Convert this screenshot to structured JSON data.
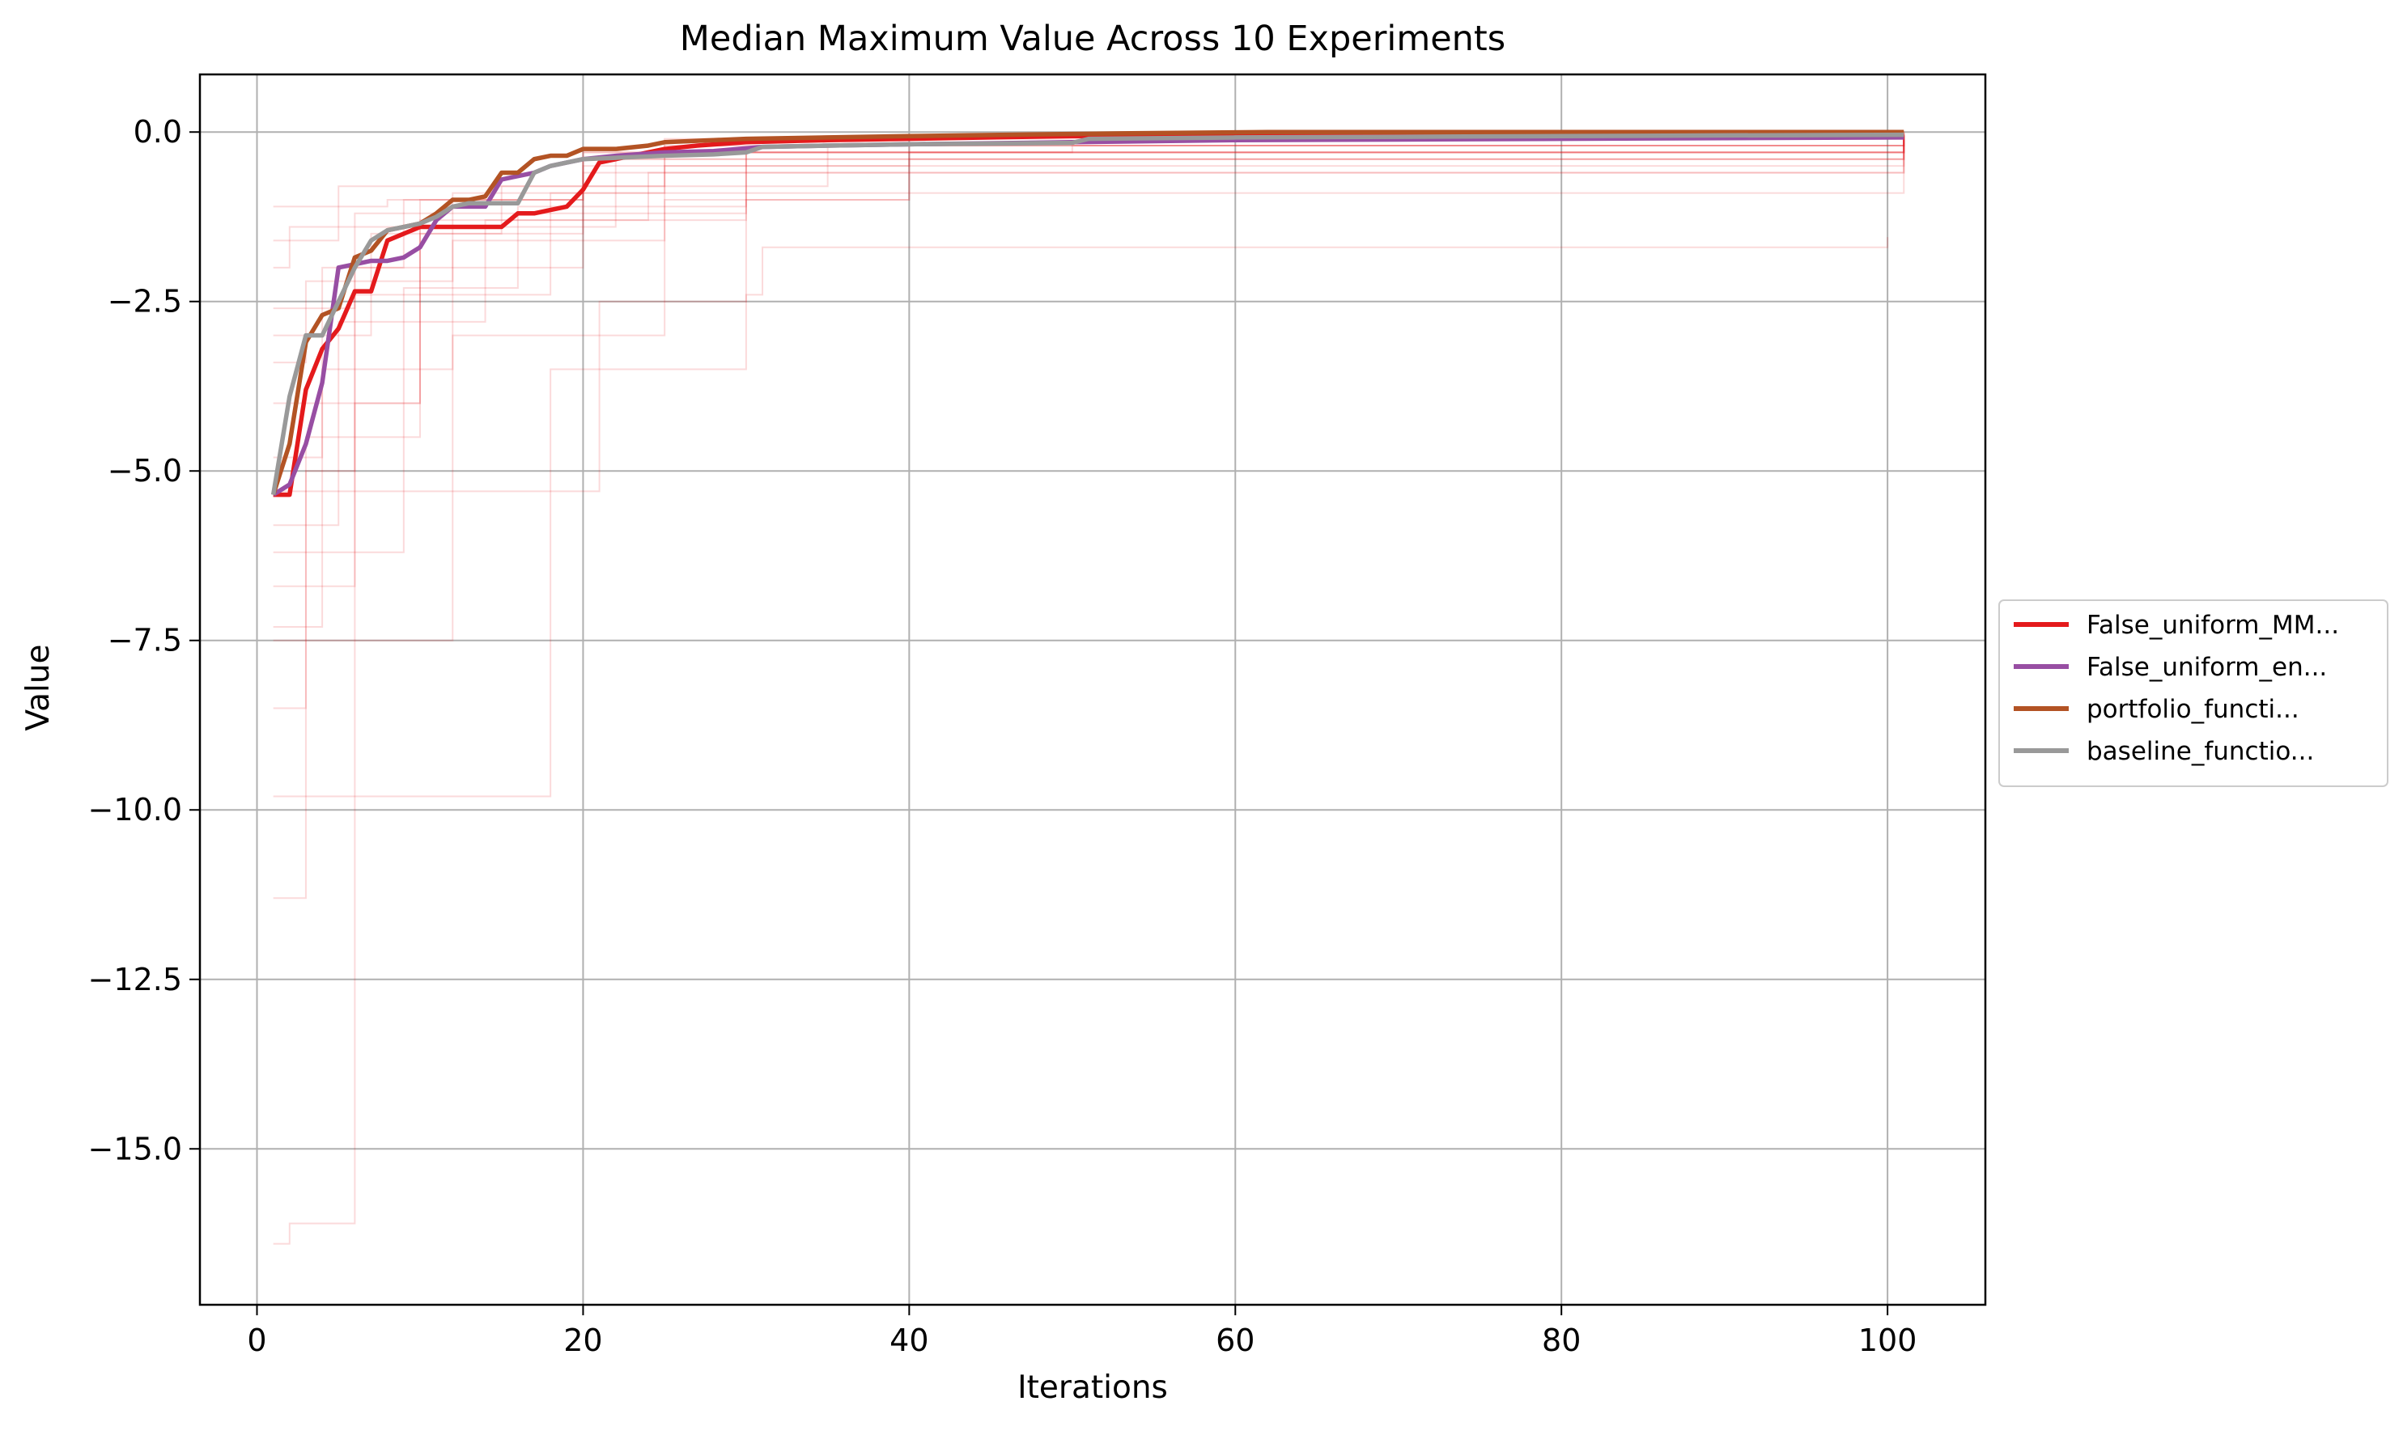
{
  "chart_data": {
    "type": "line",
    "title": "Median Maximum Value Across 10 Experiments",
    "xlabel": "Iterations",
    "ylabel": "Value",
    "xlim": [
      -3.5,
      106
    ],
    "ylim": [
      -17.3,
      0.85
    ],
    "xticks": [
      0,
      20,
      40,
      60,
      80,
      100
    ],
    "xtick_labels": [
      "0",
      "20",
      "40",
      "60",
      "80",
      "100"
    ],
    "yticks": [
      0.0,
      -2.5,
      -5.0,
      -7.5,
      -10.0,
      -12.5,
      -15.0
    ],
    "ytick_labels": [
      "0.0",
      "−2.5",
      "−5.0",
      "−7.5",
      "−10.0",
      "−12.5",
      "−15.0"
    ],
    "grid": true,
    "legend_placement": "center-right outside",
    "series": [
      {
        "name": "False_uniform_MM...",
        "color": "#e41a1c",
        "points": [
          [
            1,
            -5.35
          ],
          [
            2,
            -5.35
          ],
          [
            3,
            -3.8
          ],
          [
            4,
            -3.2
          ],
          [
            5,
            -2.9
          ],
          [
            6,
            -2.35
          ],
          [
            7,
            -2.35
          ],
          [
            8,
            -1.6
          ],
          [
            9,
            -1.5
          ],
          [
            10,
            -1.4
          ],
          [
            11,
            -1.4
          ],
          [
            12,
            -1.4
          ],
          [
            13,
            -1.4
          ],
          [
            14,
            -1.4
          ],
          [
            15,
            -1.4
          ],
          [
            16,
            -1.2
          ],
          [
            17,
            -1.2
          ],
          [
            18,
            -1.15
          ],
          [
            19,
            -1.1
          ],
          [
            20,
            -0.85
          ],
          [
            21,
            -0.45
          ],
          [
            22,
            -0.4
          ],
          [
            23,
            -0.35
          ],
          [
            24,
            -0.3
          ],
          [
            25,
            -0.25
          ],
          [
            27,
            -0.2
          ],
          [
            30,
            -0.15
          ],
          [
            35,
            -0.12
          ],
          [
            40,
            -0.1
          ],
          [
            45,
            -0.08
          ],
          [
            50,
            -0.06
          ],
          [
            60,
            -0.05
          ],
          [
            70,
            -0.05
          ],
          [
            80,
            -0.04
          ],
          [
            90,
            -0.03
          ],
          [
            101,
            -0.02
          ]
        ]
      },
      {
        "name": "False_uniform_en...",
        "color": "#984ea3",
        "points": [
          [
            1,
            -5.35
          ],
          [
            2,
            -5.2
          ],
          [
            3,
            -4.6
          ],
          [
            4,
            -3.7
          ],
          [
            5,
            -2.0
          ],
          [
            6,
            -1.95
          ],
          [
            7,
            -1.9
          ],
          [
            8,
            -1.9
          ],
          [
            9,
            -1.85
          ],
          [
            10,
            -1.7
          ],
          [
            11,
            -1.3
          ],
          [
            12,
            -1.1
          ],
          [
            13,
            -1.1
          ],
          [
            14,
            -1.1
          ],
          [
            15,
            -0.7
          ],
          [
            16,
            -0.65
          ],
          [
            17,
            -0.6
          ],
          [
            18,
            -0.5
          ],
          [
            19,
            -0.45
          ],
          [
            20,
            -0.4
          ],
          [
            22,
            -0.35
          ],
          [
            25,
            -0.3
          ],
          [
            28,
            -0.28
          ],
          [
            31,
            -0.22
          ],
          [
            35,
            -0.2
          ],
          [
            40,
            -0.18
          ],
          [
            50,
            -0.15
          ],
          [
            60,
            -0.12
          ],
          [
            70,
            -0.11
          ],
          [
            80,
            -0.1
          ],
          [
            90,
            -0.09
          ],
          [
            101,
            -0.08
          ]
        ]
      },
      {
        "name": "portfolio_functi...",
        "color": "#b35324",
        "points": [
          [
            1,
            -5.35
          ],
          [
            2,
            -4.6
          ],
          [
            3,
            -3.1
          ],
          [
            4,
            -2.7
          ],
          [
            5,
            -2.6
          ],
          [
            6,
            -1.85
          ],
          [
            7,
            -1.75
          ],
          [
            8,
            -1.45
          ],
          [
            9,
            -1.4
          ],
          [
            10,
            -1.35
          ],
          [
            11,
            -1.2
          ],
          [
            12,
            -1.0
          ],
          [
            13,
            -1.0
          ],
          [
            14,
            -0.95
          ],
          [
            15,
            -0.6
          ],
          [
            16,
            -0.6
          ],
          [
            17,
            -0.4
          ],
          [
            18,
            -0.35
          ],
          [
            19,
            -0.35
          ],
          [
            20,
            -0.25
          ],
          [
            22,
            -0.25
          ],
          [
            24,
            -0.2
          ],
          [
            25,
            -0.15
          ],
          [
            28,
            -0.12
          ],
          [
            30,
            -0.1
          ],
          [
            35,
            -0.08
          ],
          [
            40,
            -0.06
          ],
          [
            46,
            -0.04
          ],
          [
            53,
            -0.02
          ],
          [
            62,
            0.0
          ],
          [
            70,
            0.0
          ],
          [
            80,
            0.0
          ],
          [
            90,
            0.0
          ],
          [
            101,
            0.0
          ]
        ]
      },
      {
        "name": "baseline_functio...",
        "color": "#999999",
        "points": [
          [
            1,
            -5.35
          ],
          [
            2,
            -3.9
          ],
          [
            3,
            -3.0
          ],
          [
            4,
            -3.0
          ],
          [
            5,
            -2.5
          ],
          [
            6,
            -2.0
          ],
          [
            7,
            -1.6
          ],
          [
            8,
            -1.45
          ],
          [
            9,
            -1.4
          ],
          [
            10,
            -1.35
          ],
          [
            11,
            -1.25
          ],
          [
            12,
            -1.1
          ],
          [
            13,
            -1.05
          ],
          [
            14,
            -1.05
          ],
          [
            15,
            -1.05
          ],
          [
            16,
            -1.05
          ],
          [
            17,
            -0.6
          ],
          [
            18,
            -0.5
          ],
          [
            19,
            -0.45
          ],
          [
            20,
            -0.4
          ],
          [
            22,
            -0.38
          ],
          [
            25,
            -0.35
          ],
          [
            28,
            -0.33
          ],
          [
            30,
            -0.3
          ],
          [
            31,
            -0.22
          ],
          [
            35,
            -0.2
          ],
          [
            40,
            -0.18
          ],
          [
            45,
            -0.17
          ],
          [
            50,
            -0.16
          ],
          [
            51,
            -0.1
          ],
          [
            60,
            -0.08
          ],
          [
            70,
            -0.07
          ],
          [
            80,
            -0.06
          ],
          [
            90,
            -0.05
          ],
          [
            101,
            -0.04
          ]
        ]
      }
    ],
    "background_runs": {
      "color": "#e41a1c",
      "description": "faint individual experiment traces behind medians",
      "runs": [
        [
          [
            1,
            -16.4
          ],
          [
            2,
            -16.1
          ],
          [
            5,
            -16.1
          ],
          [
            6,
            -4.0
          ],
          [
            10,
            -1.5
          ],
          [
            20,
            -0.5
          ],
          [
            40,
            -0.2
          ],
          [
            101,
            -0.05
          ]
        ],
        [
          [
            1,
            -9.8
          ],
          [
            17,
            -9.8
          ],
          [
            18,
            -3.5
          ],
          [
            30,
            -1.0
          ],
          [
            40,
            -0.4
          ],
          [
            101,
            -0.1
          ]
        ],
        [
          [
            1,
            -11.3
          ],
          [
            2,
            -11.3
          ],
          [
            3,
            -4.5
          ],
          [
            10,
            -1.3
          ],
          [
            30,
            -0.3
          ],
          [
            101,
            -0.05
          ]
        ],
        [
          [
            1,
            -7.5
          ],
          [
            11,
            -7.5
          ],
          [
            12,
            -3.0
          ],
          [
            25,
            -1.0
          ],
          [
            40,
            -0.3
          ],
          [
            101,
            -0.05
          ]
        ],
        [
          [
            1,
            -6.7
          ],
          [
            5,
            -6.7
          ],
          [
            6,
            -2.0
          ],
          [
            20,
            -0.6
          ],
          [
            101,
            -0.02
          ]
        ],
        [
          [
            1,
            -5.3
          ],
          [
            20,
            -5.3
          ],
          [
            21,
            -2.5
          ],
          [
            30,
            -2.4
          ],
          [
            31,
            -1.7
          ],
          [
            40,
            -1.7
          ],
          [
            60,
            -1.7
          ],
          [
            80,
            -1.7
          ],
          [
            100,
            -1.55
          ]
        ],
        [
          [
            1,
            -4.8
          ],
          [
            3,
            -4.8
          ],
          [
            4,
            -2.0
          ],
          [
            9,
            -1.0
          ],
          [
            20,
            -0.3
          ],
          [
            101,
            -0.02
          ]
        ],
        [
          [
            1,
            -3.0
          ],
          [
            6,
            -3.0
          ],
          [
            7,
            -1.5
          ],
          [
            15,
            -0.8
          ],
          [
            35,
            -0.2
          ],
          [
            101,
            -0.05
          ]
        ],
        [
          [
            1,
            -2.0
          ],
          [
            2,
            -1.4
          ],
          [
            10,
            -1.0
          ],
          [
            20,
            -0.3
          ],
          [
            101,
            0.0
          ]
        ],
        [
          [
            1,
            -1.1
          ],
          [
            8,
            -1.0
          ],
          [
            20,
            -0.4
          ],
          [
            101,
            -0.05
          ]
        ],
        [
          [
            1,
            -7.3
          ],
          [
            3,
            -7.3
          ],
          [
            4,
            -3.5
          ],
          [
            12,
            -1.6
          ],
          [
            25,
            -0.5
          ],
          [
            101,
            -0.1
          ]
        ],
        [
          [
            1,
            -6.2
          ],
          [
            8,
            -6.2
          ],
          [
            9,
            -2.3
          ],
          [
            16,
            -1.1
          ],
          [
            30,
            -0.3
          ],
          [
            101,
            -0.04
          ]
        ],
        [
          [
            1,
            -4.0
          ],
          [
            9,
            -4.0
          ],
          [
            10,
            -1.4
          ],
          [
            22,
            -0.4
          ],
          [
            101,
            -0.03
          ]
        ],
        [
          [
            1,
            -3.4
          ],
          [
            3,
            -2.2
          ],
          [
            12,
            -0.9
          ],
          [
            25,
            -0.2
          ],
          [
            101,
            -0.02
          ]
        ],
        [
          [
            1,
            -2.6
          ],
          [
            5,
            -2.6
          ],
          [
            6,
            -1.2
          ],
          [
            30,
            -0.3
          ],
          [
            50,
            -0.2
          ],
          [
            101,
            -0.2
          ]
        ],
        [
          [
            1,
            -5.8
          ],
          [
            4,
            -5.8
          ],
          [
            5,
            -2.8
          ],
          [
            14,
            -1.3
          ],
          [
            24,
            -0.6
          ],
          [
            101,
            -0.12
          ]
        ],
        [
          [
            1,
            -1.6
          ],
          [
            4,
            -1.6
          ],
          [
            5,
            -0.8
          ],
          [
            25,
            -0.1
          ],
          [
            101,
            0.0
          ]
        ],
        [
          [
            1,
            -8.5
          ],
          [
            2,
            -8.5
          ],
          [
            3,
            -5.0
          ],
          [
            6,
            -2.4
          ],
          [
            18,
            -0.9
          ],
          [
            101,
            -0.06
          ]
        ]
      ]
    }
  }
}
